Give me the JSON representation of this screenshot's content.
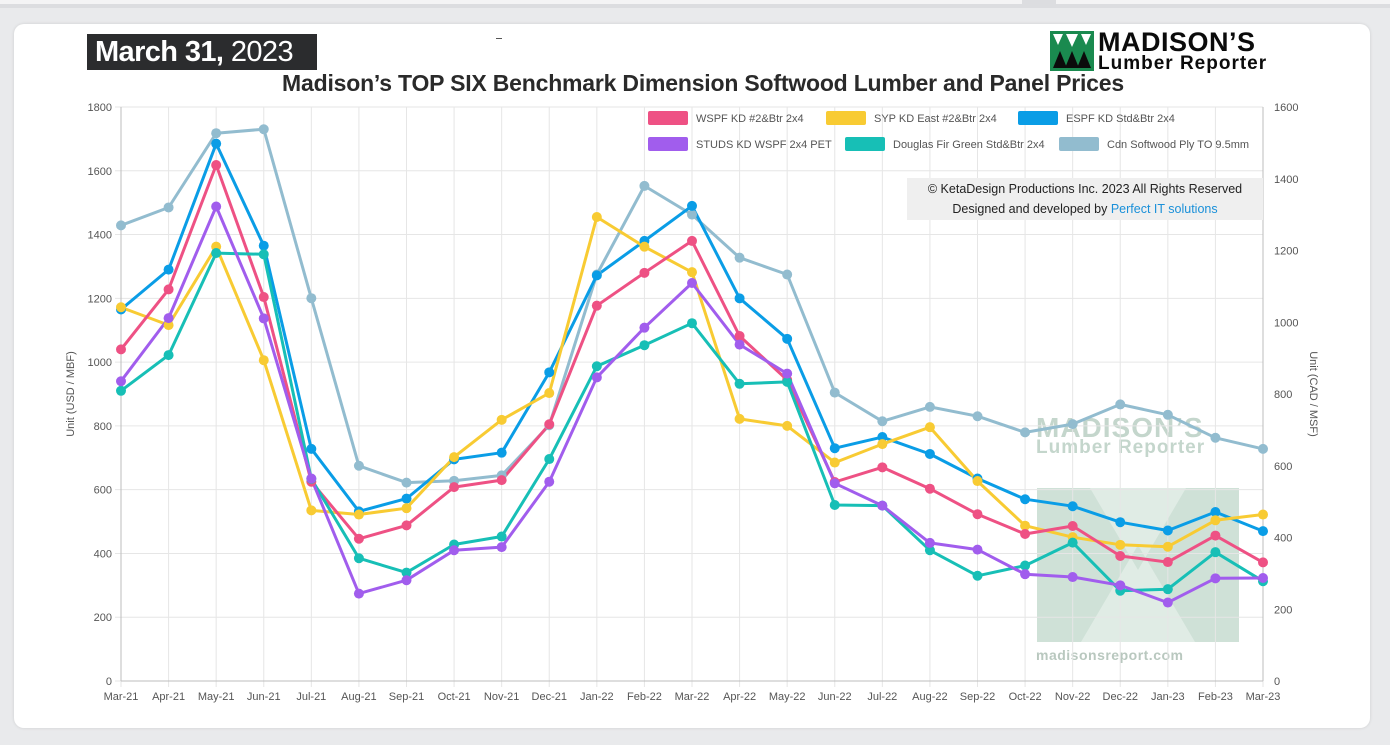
{
  "header": {
    "date_bold": "March 31,",
    "date_year": "2023",
    "title": "Madison’s TOP SIX Benchmark Dimension Softwood Lumber and Panel Prices"
  },
  "logo": {
    "line1": "MADISON’S",
    "line2": "Lumber Reporter",
    "colors": {
      "green": "#1a8a4f",
      "black": "#0b0b0b"
    }
  },
  "credit": {
    "line1": "© KetaDesign Productions Inc. 2023 All Rights Reserved",
    "line2_prefix": "Designed and developed by",
    "line2_link": "Perfect IT solutions"
  },
  "watermark": {
    "line1": "MADISON’S",
    "line2": "Lumber Reporter",
    "url": "madisonsreport.com"
  },
  "chart_data": {
    "type": "line",
    "categories": [
      "Mar-21",
      "Apr-21",
      "May-21",
      "Jun-21",
      "Jul-21",
      "Aug-21",
      "Sep-21",
      "Oct-21",
      "Nov-21",
      "Dec-21",
      "Jan-22",
      "Feb-22",
      "Mar-22",
      "Apr-22",
      "May-22",
      "Jun-22",
      "Jul-22",
      "Aug-22",
      "Sep-22",
      "Oct-22",
      "Nov-22",
      "Dec-22",
      "Jan-23",
      "Feb-23",
      "Mar-23"
    ],
    "ylabel": "Unit (USD / MBF)",
    "ylim": [
      0,
      1800
    ],
    "yticks": [
      0,
      200,
      400,
      600,
      800,
      1000,
      1200,
      1400,
      1600,
      1800
    ],
    "y2label": "Unit (CAD / MSF)",
    "y2lim": [
      0,
      1600
    ],
    "y2ticks": [
      0,
      200,
      400,
      600,
      800,
      1000,
      1200,
      1400,
      1600
    ],
    "grid": true,
    "legend_position": "top-right",
    "series": [
      {
        "name": "Cdn Softwood Ply TO 9.5mm",
        "color": "#92bccf",
        "axis": "right",
        "values": [
          1270,
          1320,
          1527,
          1538,
          1067,
          600,
          553,
          558,
          573,
          713,
          1133,
          1380,
          1300,
          1180,
          1133,
          804,
          724,
          764,
          738,
          693,
          716,
          771,
          742,
          678,
          647
        ]
      },
      {
        "name": "ESPF KD Std&Btr 2x4",
        "color": "#0a9de6",
        "axis": "left",
        "values": [
          1165,
          1290,
          1685,
          1365,
          728,
          532,
          572,
          695,
          716,
          968,
          1272,
          1380,
          1490,
          1200,
          1073,
          730,
          765,
          712,
          635,
          570,
          548,
          498,
          472,
          530,
          470
        ]
      },
      {
        "name": "SYP KD East #2&Btr 2x4",
        "color": "#f8cb33",
        "axis": "left",
        "values": [
          1172,
          1116,
          1362,
          1006,
          535,
          522,
          542,
          702,
          819,
          903,
          1455,
          1362,
          1282,
          822,
          800,
          685,
          743,
          796,
          627,
          487,
          451,
          427,
          421,
          504,
          522
        ]
      },
      {
        "name": "WSPF KD #2&Btr 2x4",
        "color": "#ee5184",
        "axis": "left",
        "values": [
          1040,
          1228,
          1618,
          1204,
          625,
          446,
          488,
          608,
          630,
          805,
          1177,
          1280,
          1380,
          1082,
          944,
          624,
          670,
          603,
          523,
          461,
          486,
          392,
          373,
          456,
          372
        ]
      },
      {
        "name": "Douglas Fir Green Std&Btr 2x4",
        "color": "#17bfb6",
        "axis": "left",
        "values": [
          910,
          1022,
          1342,
          1338,
          634,
          385,
          340,
          428,
          453,
          696,
          987,
          1053,
          1122,
          932,
          938,
          552,
          550,
          410,
          330,
          362,
          434,
          283,
          288,
          404,
          313
        ]
      },
      {
        "name": "STUDS KD WSPF 2x4 PET",
        "color": "#a15ded",
        "axis": "left",
        "values": [
          940,
          1138,
          1488,
          1137,
          635,
          274,
          316,
          410,
          420,
          625,
          952,
          1108,
          1248,
          1055,
          964,
          620,
          550,
          433,
          412,
          335,
          326,
          300,
          246,
          322,
          323
        ]
      }
    ],
    "legend_order": [
      "WSPF KD #2&Btr 2x4",
      "SYP KD East #2&Btr 2x4",
      "ESPF KD Std&Btr 2x4",
      "STUDS KD WSPF 2x4 PET",
      "Douglas Fir Green Std&Btr 2x4",
      "Cdn Softwood Ply TO 9.5mm"
    ]
  }
}
